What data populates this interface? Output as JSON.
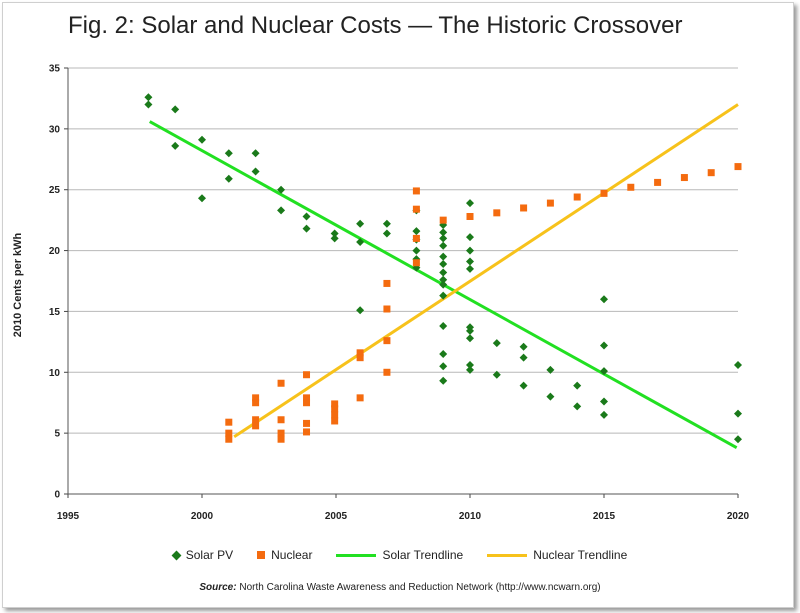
{
  "title": "Fig. 2: Solar and Nuclear Costs — The Historic Crossover",
  "source": {
    "label": "Source:",
    "text": "North Carolina Waste Awareness and Reduction Network (http://www.ncwarn.org)"
  },
  "colors": {
    "solar": "#1a7a1a",
    "nuclear": "#f46b0f",
    "solar_trend": "#22e022",
    "nuclear_trend": "#f7c21b",
    "grid": "#b8b8b8"
  },
  "chart_data": {
    "type": "scatter",
    "ylabel": "2010 Cents per kWh",
    "xlabel": "",
    "xlim": [
      1995,
      2020
    ],
    "ylim": [
      0,
      35
    ],
    "x_ticks": [
      "1995",
      "2000",
      "2005",
      "2010",
      "2015",
      "2020"
    ],
    "y_ticks": [
      "0",
      "5",
      "10",
      "15",
      "20",
      "25",
      "30",
      "35"
    ],
    "grid": "horizontal",
    "legend_position": "bottom",
    "series": [
      {
        "name": "Solar PV",
        "marker": "diamond",
        "points": [
          [
            1998,
            32.6
          ],
          [
            1998,
            32.0
          ],
          [
            1999,
            31.6
          ],
          [
            1999,
            28.6
          ],
          [
            2000,
            29.1
          ],
          [
            2000,
            24.3
          ],
          [
            2001,
            28.0
          ],
          [
            2001,
            25.9
          ],
          [
            2002,
            28.0
          ],
          [
            2002,
            26.5
          ],
          [
            2002.95,
            25.0
          ],
          [
            2002.95,
            23.3
          ],
          [
            2003.9,
            22.8
          ],
          [
            2003.9,
            21.8
          ],
          [
            2004.95,
            21.4
          ],
          [
            2004.95,
            21.0
          ],
          [
            2005.9,
            22.2
          ],
          [
            2005.9,
            20.7
          ],
          [
            2005.9,
            15.1
          ],
          [
            2006.9,
            22.2
          ],
          [
            2006.9,
            21.4
          ],
          [
            2008,
            21.6
          ],
          [
            2008,
            20.9
          ],
          [
            2008,
            20.0
          ],
          [
            2008,
            19.3
          ],
          [
            2008,
            18.6
          ],
          [
            2008,
            23.3
          ],
          [
            2009,
            22.1
          ],
          [
            2009,
            21.5
          ],
          [
            2009,
            21.0
          ],
          [
            2009,
            20.4
          ],
          [
            2009,
            19.5
          ],
          [
            2009,
            18.9
          ],
          [
            2009,
            18.2
          ],
          [
            2009,
            17.6
          ],
          [
            2009,
            17.2
          ],
          [
            2009,
            16.3
          ],
          [
            2009,
            13.8
          ],
          [
            2009,
            11.5
          ],
          [
            2009,
            10.5
          ],
          [
            2009,
            9.3
          ],
          [
            2010,
            23.9
          ],
          [
            2010,
            21.1
          ],
          [
            2010,
            20.0
          ],
          [
            2010,
            19.1
          ],
          [
            2010,
            18.5
          ],
          [
            2010,
            13.7
          ],
          [
            2010,
            13.4
          ],
          [
            2010,
            12.8
          ],
          [
            2010,
            10.6
          ],
          [
            2010,
            10.2
          ],
          [
            2011,
            12.4
          ],
          [
            2011,
            9.8
          ],
          [
            2012,
            12.1
          ],
          [
            2012,
            11.2
          ],
          [
            2012,
            8.9
          ],
          [
            2013,
            10.2
          ],
          [
            2013,
            8.0
          ],
          [
            2014,
            8.9
          ],
          [
            2014,
            7.2
          ],
          [
            2015,
            16.0
          ],
          [
            2015,
            12.2
          ],
          [
            2015,
            10.1
          ],
          [
            2015,
            7.6
          ],
          [
            2015,
            6.5
          ],
          [
            2020,
            10.6
          ],
          [
            2020,
            6.6
          ],
          [
            2020,
            4.5
          ]
        ]
      },
      {
        "name": "Nuclear",
        "marker": "square",
        "points": [
          [
            2001,
            5.9
          ],
          [
            2001,
            5.0
          ],
          [
            2001,
            4.5
          ],
          [
            2002,
            7.9
          ],
          [
            2002,
            7.5
          ],
          [
            2002,
            6.1
          ],
          [
            2002,
            5.6
          ],
          [
            2002.95,
            9.1
          ],
          [
            2002.95,
            6.1
          ],
          [
            2002.95,
            5.0
          ],
          [
            2002.95,
            4.5
          ],
          [
            2003.9,
            9.8
          ],
          [
            2003.9,
            7.9
          ],
          [
            2003.9,
            7.5
          ],
          [
            2003.9,
            5.8
          ],
          [
            2003.9,
            5.1
          ],
          [
            2004.95,
            7.4
          ],
          [
            2004.95,
            7.0
          ],
          [
            2004.95,
            6.5
          ],
          [
            2004.95,
            6.0
          ],
          [
            2005.9,
            11.6
          ],
          [
            2005.9,
            11.2
          ],
          [
            2005.9,
            7.9
          ],
          [
            2006.9,
            17.3
          ],
          [
            2006.9,
            15.2
          ],
          [
            2006.9,
            12.6
          ],
          [
            2006.9,
            10.0
          ],
          [
            2008,
            24.9
          ],
          [
            2008,
            23.4
          ],
          [
            2008,
            21.0
          ],
          [
            2008,
            19.0
          ],
          [
            2009,
            22.5
          ],
          [
            2010,
            22.8
          ],
          [
            2011,
            23.1
          ],
          [
            2012,
            23.5
          ],
          [
            2013,
            23.9
          ],
          [
            2014,
            24.4
          ],
          [
            2015,
            24.7
          ],
          [
            2016,
            25.2
          ],
          [
            2017,
            25.6
          ],
          [
            2018,
            26.0
          ],
          [
            2019,
            26.4
          ],
          [
            2020,
            26.9
          ]
        ]
      },
      {
        "name": "Solar Trendline",
        "line": [
          [
            1998.05,
            30.6
          ],
          [
            2019.95,
            3.8
          ]
        ]
      },
      {
        "name": "Nuclear Trendline",
        "line": [
          [
            2001.2,
            4.7
          ],
          [
            2020,
            32.0
          ]
        ]
      }
    ]
  }
}
